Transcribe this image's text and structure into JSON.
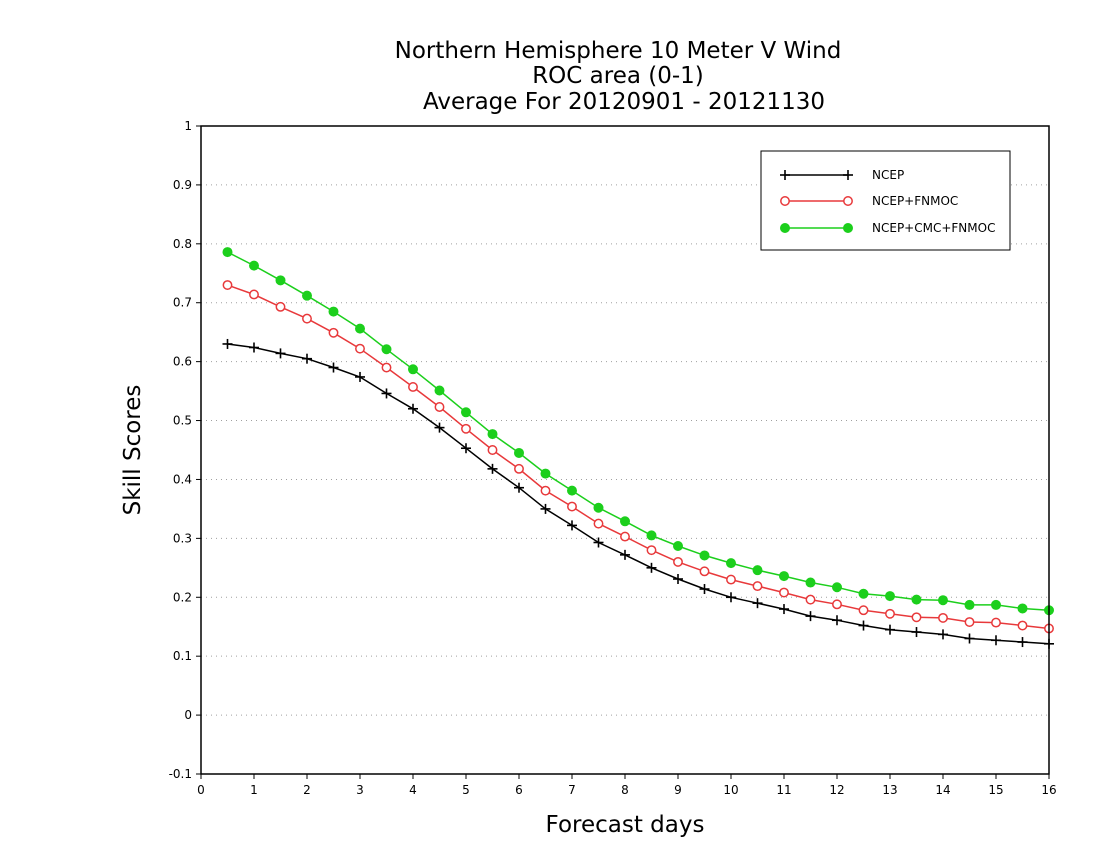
{
  "chart_data": {
    "type": "line",
    "title": [
      "Northern Hemisphere 10 Meter V Wind",
      "ROC area (0-1)",
      "Average For 20120901 - 20121130"
    ],
    "xlabel": "Forecast days",
    "ylabel": "Skill Scores",
    "xlim": [
      0,
      16
    ],
    "ylim": [
      -0.1,
      1
    ],
    "xticks": [
      0,
      1,
      2,
      3,
      4,
      5,
      6,
      7,
      8,
      9,
      10,
      11,
      12,
      13,
      14,
      15,
      16
    ],
    "yticks": [
      -0.1,
      0,
      0.1,
      0.2,
      0.3,
      0.4,
      0.5,
      0.6,
      0.7,
      0.8,
      0.9,
      1
    ],
    "ytick_labels": [
      "-0.1",
      "0",
      "0.1",
      "0.2",
      "0.3",
      "0.4",
      "0.5",
      "0.6",
      "0.7",
      "0.8",
      "0.9",
      "1"
    ],
    "grid": "y-dotted",
    "legend_position": "top-right",
    "x": [
      0.5,
      1,
      1.5,
      2,
      2.5,
      3,
      3.5,
      4,
      4.5,
      5,
      5.5,
      6,
      6.5,
      7,
      7.5,
      8,
      8.5,
      9,
      9.5,
      10,
      10.5,
      11,
      11.5,
      12,
      12.5,
      13,
      13.5,
      14,
      14.5,
      15,
      15.5,
      16
    ],
    "series": [
      {
        "name": "NCEP",
        "color": "#000000",
        "marker": "plus",
        "values": [
          0.63,
          0.624,
          0.614,
          0.605,
          0.59,
          0.574,
          0.546,
          0.52,
          0.488,
          0.453,
          0.418,
          0.386,
          0.35,
          0.322,
          0.293,
          0.272,
          0.25,
          0.231,
          0.214,
          0.2,
          0.19,
          0.18,
          0.168,
          0.161,
          0.152,
          0.145,
          0.141,
          0.137,
          0.13,
          0.127,
          0.124,
          0.121
        ]
      },
      {
        "name": "NCEP+FNMOC",
        "color": "#e8393b",
        "marker": "open-circle",
        "values": [
          0.73,
          0.714,
          0.693,
          0.673,
          0.649,
          0.622,
          0.59,
          0.557,
          0.523,
          0.486,
          0.45,
          0.418,
          0.381,
          0.354,
          0.325,
          0.303,
          0.28,
          0.26,
          0.244,
          0.23,
          0.219,
          0.208,
          0.196,
          0.188,
          0.178,
          0.172,
          0.166,
          0.165,
          0.158,
          0.157,
          0.152,
          0.147
        ]
      },
      {
        "name": "NCEP+CMC+FNMOC",
        "color": "#1ccf1c",
        "marker": "filled-circle",
        "values": [
          0.786,
          0.763,
          0.738,
          0.712,
          0.685,
          0.656,
          0.621,
          0.587,
          0.551,
          0.514,
          0.477,
          0.445,
          0.41,
          0.381,
          0.352,
          0.329,
          0.305,
          0.287,
          0.271,
          0.258,
          0.246,
          0.236,
          0.225,
          0.217,
          0.206,
          0.202,
          0.196,
          0.195,
          0.187,
          0.187,
          0.181,
          0.178
        ]
      }
    ]
  }
}
